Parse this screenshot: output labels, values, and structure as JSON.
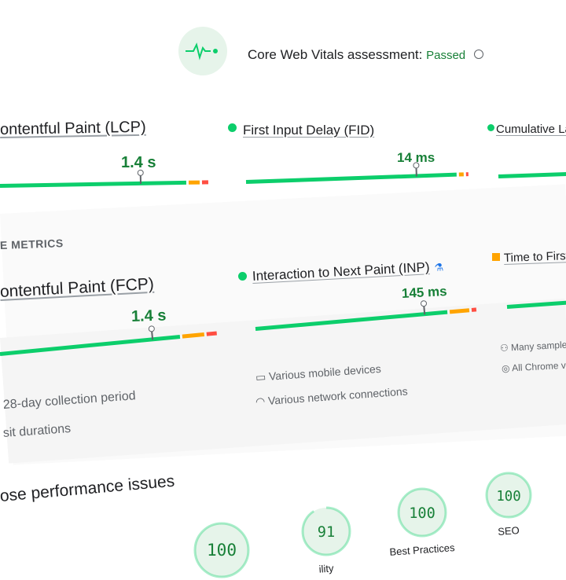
{
  "header": {
    "title": "Core Web Vitals assessment:",
    "status": "Passed"
  },
  "core_metrics": [
    {
      "name": "ontentful Paint (LCP)",
      "value": "1.4 s"
    },
    {
      "name": "First Input Delay (FID)",
      "value": "14 ms"
    },
    {
      "name": "Cumulative La"
    }
  ],
  "other_metrics": {
    "heading": "E METRICS",
    "items": [
      {
        "name": "ontentful Paint (FCP)",
        "value": "1.4 s"
      },
      {
        "name": "Interaction to Next Paint (INP)",
        "value": "145 ms"
      },
      {
        "name": "Time to First"
      }
    ]
  },
  "notes": [
    "Many samples",
    "All Chrome ve",
    "Various mobile devices",
    "Various network connections",
    "28-day collection period",
    "sit durations"
  ],
  "diagnose": {
    "heading": "ose performance issues"
  },
  "scores": [
    {
      "value": 100
    },
    {
      "value": 91,
      "label": "ility"
    },
    {
      "value": 100,
      "label": "Best Practices"
    },
    {
      "value": 100,
      "label": "SEO"
    }
  ]
}
